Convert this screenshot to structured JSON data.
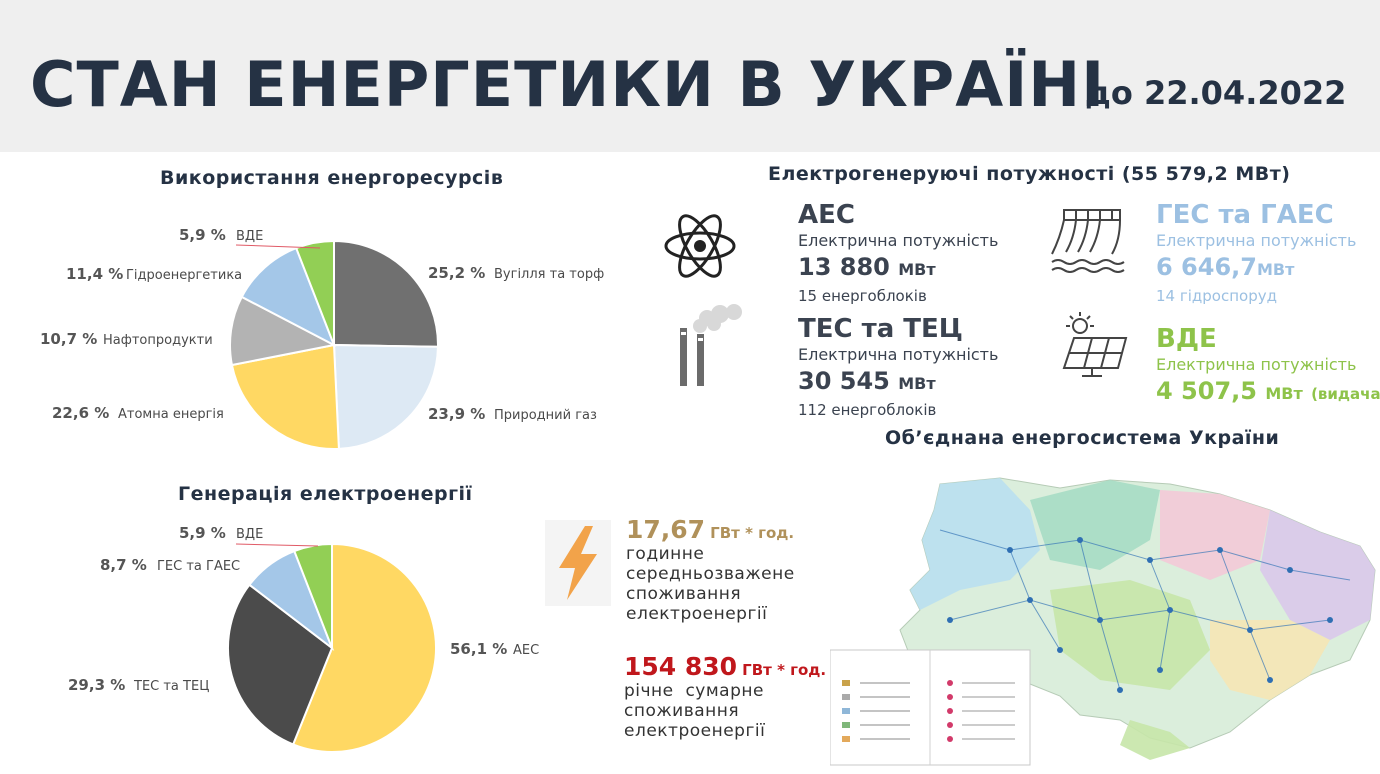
{
  "header": {
    "title": "СТАН ЕНЕРГЕТИКИ В УКРАЇНІ",
    "date": "до 22.04.2022"
  },
  "chart_data": [
    {
      "type": "pie",
      "title": "Використання енергоресурсів",
      "slices": [
        {
          "label": "Вугілля та торф",
          "value": 25.2,
          "text": "25,2 %",
          "color": "#707070"
        },
        {
          "label": "Природний газ",
          "value": 23.9,
          "text": "23,9 %",
          "color": "#dde9f4"
        },
        {
          "label": "Атомна енергія",
          "value": 22.6,
          "text": "22,6 %",
          "color": "#ffd863"
        },
        {
          "label": "Нафтопродукти",
          "value": 10.7,
          "text": "10,7 %",
          "color": "#b3b3b3"
        },
        {
          "label": "Гідроенергетика",
          "value": 11.4,
          "text": "11,4 %",
          "color": "#a4c7e8"
        },
        {
          "label": "ВДЕ",
          "value": 5.9,
          "text": "5,9 %",
          "color": "#92cf55"
        }
      ]
    },
    {
      "type": "pie",
      "title": "Генерація електроенергії",
      "slices": [
        {
          "label": "АЕС",
          "value": 56.1,
          "text": "56,1 %",
          "color": "#ffd863"
        },
        {
          "label": "ТЕС та ТЕЦ",
          "value": 29.3,
          "text": "29,3 %",
          "color": "#4b4b4b"
        },
        {
          "label": "ГЕС та ГАЕС",
          "value": 8.7,
          "text": "8,7 %",
          "color": "#a4c7e8"
        },
        {
          "label": "ВДЕ",
          "value": 5.9,
          "text": "5,9 %",
          "color": "#92cf55"
        }
      ]
    }
  ],
  "capacity": {
    "title": "Електрогенеруючі потужності (55 579,2 МВт)",
    "aes": {
      "name": "АЕС",
      "sub": "Електрична потужність",
      "value": "13 880",
      "unit": "МВт",
      "note": "15 енергоблоків"
    },
    "tes": {
      "name": "ТЕС та ТЕЦ",
      "sub": "Електрична потужність",
      "value": "30 545",
      "unit": "МВт",
      "note": "112 енергоблоків"
    },
    "ges": {
      "name": "ГЕС та ГАЕС",
      "sub": "Електрична потужність",
      "value": "6 646,7",
      "unit": "МВт",
      "note": "14 гідроспоруд"
    },
    "vde": {
      "name": "ВДЕ",
      "sub": "Електрична потужність",
      "value": "4 507,5",
      "unit": "МВт",
      "note": "(видача)"
    }
  },
  "consumption": {
    "hourly": {
      "value": "17,67",
      "unit": "ГВт * год.",
      "desc": [
        "годинне",
        "середньозважене",
        "споживання",
        "електроенергії"
      ],
      "color": "#b0915a"
    },
    "annual": {
      "value": "154 830",
      "unit": "ГВт * год.",
      "desc": [
        "річне  сумарне",
        "споживання",
        "електроенергії"
      ],
      "color": "#c0171c"
    }
  },
  "map": {
    "title": "Об’єднана енергосистема України"
  }
}
